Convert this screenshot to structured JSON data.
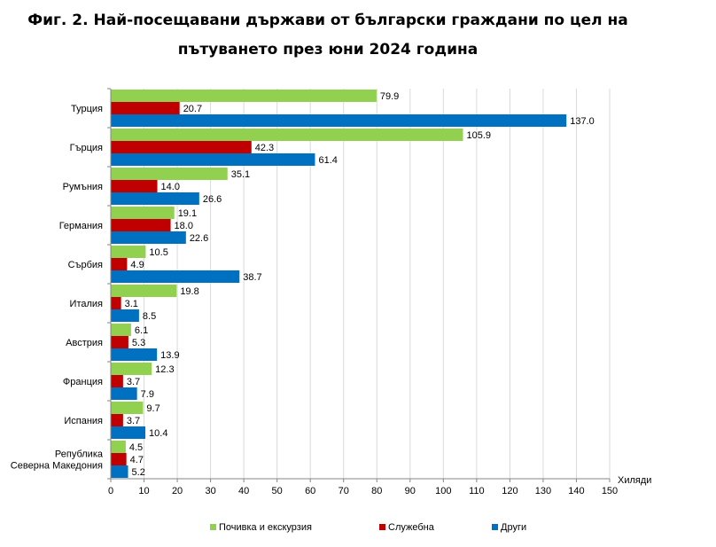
{
  "title_line1": "Фиг. 2. Най-посещавани държави от български граждани по цел на",
  "title_line2": "пътуването през юни 2024 година",
  "chart_data": {
    "type": "bar",
    "orientation": "horizontal",
    "categories": [
      [
        "Турция"
      ],
      [
        "Гърция"
      ],
      [
        "Румъния"
      ],
      [
        "Германия"
      ],
      [
        "Сърбия"
      ],
      [
        "Италия"
      ],
      [
        "Австрия"
      ],
      [
        "Франция"
      ],
      [
        "Испания"
      ],
      [
        "Република",
        "Северна Македония"
      ]
    ],
    "series": [
      {
        "name": "Почивка и екскурзия",
        "color": "#92D050",
        "values": [
          79.9,
          105.9,
          35.1,
          19.1,
          10.5,
          19.8,
          6.1,
          12.3,
          9.7,
          4.5
        ]
      },
      {
        "name": "Служебна",
        "color": "#C00000",
        "values": [
          20.7,
          42.3,
          14.0,
          18.0,
          4.9,
          3.1,
          5.3,
          3.7,
          3.7,
          4.7
        ]
      },
      {
        "name": "Други",
        "color": "#0070C0",
        "values": [
          137.0,
          61.4,
          26.6,
          22.6,
          38.7,
          8.5,
          13.9,
          7.9,
          10.4,
          5.2
        ]
      }
    ],
    "xlim": [
      0,
      150
    ],
    "xticks": [
      0,
      10,
      20,
      30,
      40,
      50,
      60,
      70,
      80,
      90,
      100,
      110,
      120,
      130,
      140,
      150
    ],
    "xlabel": "Хиляди",
    "legend_position": "bottom",
    "grid": "vertical"
  }
}
